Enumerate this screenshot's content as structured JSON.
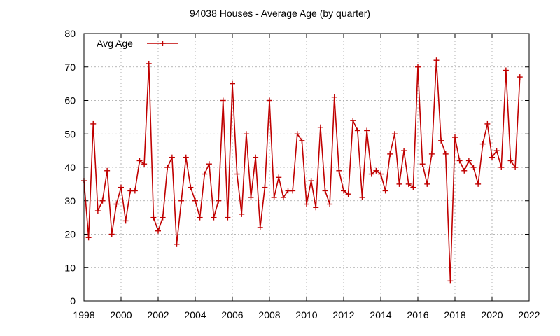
{
  "chart_data": {
    "type": "line",
    "title": "94038 Houses - Average Age (by quarter)",
    "xlabel": "",
    "ylabel": "",
    "xlim": [
      1998,
      2022
    ],
    "ylim": [
      0,
      80
    ],
    "x_ticks": [
      "1998",
      "2000",
      "2002",
      "2004",
      "2006",
      "2008",
      "2010",
      "2012",
      "2014",
      "2016",
      "2018",
      "2020",
      "2022"
    ],
    "y_ticks": [
      "0",
      "10",
      "20",
      "30",
      "40",
      "50",
      "60",
      "70",
      "80"
    ],
    "grid": true,
    "legend_position": "top-left",
    "series": [
      {
        "name": "Avg Age",
        "color": "#c00000",
        "x": [
          1998.0,
          1998.25,
          1998.5,
          1998.75,
          1999.0,
          1999.25,
          1999.5,
          1999.75,
          2000.0,
          2000.25,
          2000.5,
          2000.75,
          2001.0,
          2001.25,
          2001.5,
          2001.75,
          2002.0,
          2002.25,
          2002.5,
          2002.75,
          2003.0,
          2003.25,
          2003.5,
          2003.75,
          2004.0,
          2004.25,
          2004.5,
          2004.75,
          2005.0,
          2005.25,
          2005.5,
          2005.75,
          2006.0,
          2006.25,
          2006.5,
          2006.75,
          2007.0,
          2007.25,
          2007.5,
          2007.75,
          2008.0,
          2008.25,
          2008.5,
          2008.75,
          2009.0,
          2009.25,
          2009.5,
          2009.75,
          2010.0,
          2010.25,
          2010.5,
          2010.75,
          2011.0,
          2011.25,
          2011.5,
          2011.75,
          2012.0,
          2012.25,
          2012.5,
          2012.75,
          2013.0,
          2013.25,
          2013.5,
          2013.75,
          2014.0,
          2014.25,
          2014.5,
          2014.75,
          2015.0,
          2015.25,
          2015.5,
          2015.75,
          2016.0,
          2016.25,
          2016.5,
          2016.75,
          2017.0,
          2017.25,
          2017.5,
          2017.75,
          2018.0,
          2018.25,
          2018.5,
          2018.75,
          2019.0,
          2019.25,
          2019.5,
          2019.75,
          2020.0,
          2020.25,
          2020.5,
          2020.75,
          2021.0,
          2021.25,
          2021.5
        ],
        "values": [
          36,
          19,
          53,
          27,
          30,
          39,
          20,
          29,
          34,
          24,
          33,
          33,
          42,
          41,
          71,
          25,
          21,
          25,
          40,
          43,
          17,
          30,
          43,
          34,
          30,
          25,
          38,
          41,
          25,
          30,
          60,
          25,
          65,
          38,
          26,
          50,
          31,
          43,
          22,
          34,
          60,
          31,
          37,
          31,
          33,
          33,
          50,
          48,
          29,
          36,
          28,
          52,
          33,
          29,
          61,
          39,
          33,
          32,
          54,
          51,
          31,
          51,
          38,
          39,
          38,
          33,
          44,
          50,
          35,
          45,
          35,
          34,
          70,
          41,
          35,
          44,
          72,
          48,
          44,
          6,
          49,
          42,
          39,
          42,
          40,
          35,
          47,
          53,
          43,
          45,
          40,
          69,
          42,
          40,
          67
        ]
      }
    ]
  }
}
